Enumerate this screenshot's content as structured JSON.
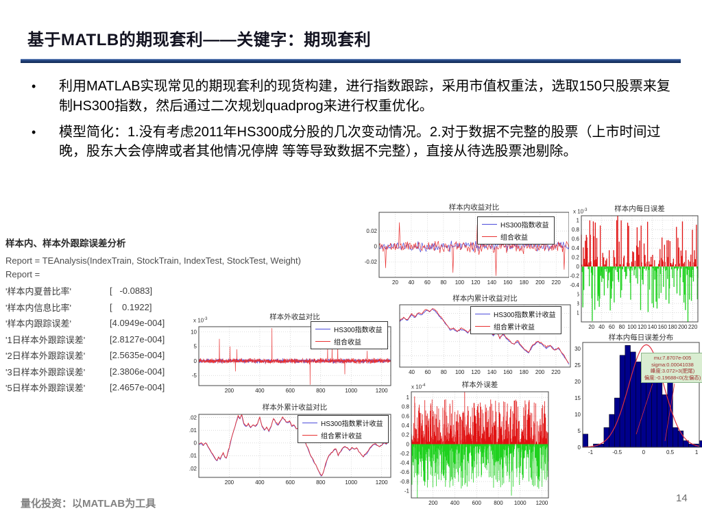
{
  "slide": {
    "title": "基于MATLB的期现套利——关键字：期现套利",
    "bullet_char": "•",
    "bullets": [
      "利用MATLAB实现常见的期现套利的现货构建，进行指数跟踪，采用市值权重法，选取150只股票来复制HS300指数，然后通过二次规划quadprog来进行权重优化。",
      "模型简化：1.没有考虑2011年HS300成分股的几次变动情况。2.对于数据不完整的股票（上市时间过晚，股东大会停牌或者其他情况停牌 等等导致数据不完整），直接从待选股票池剔除。"
    ],
    "footer": {
      "left": "量化投资：以MATLAB为工具",
      "page_number": "14"
    }
  },
  "report": {
    "heading": "样本内、样本外跟踪误差分析",
    "line1": "Report = TEAnalysis(IndexTrain, StockTrain, IndexTest, StockTest, Weight)",
    "line2": "Report =",
    "rows": [
      {
        "name": "'样本内夏普比率'",
        "value": "[   -0.0883]"
      },
      {
        "name": "'样本内信息比率'",
        "value": "[    0.1922]"
      },
      {
        "name": "'样本内跟踪误差'",
        "value": "[4.0949e-004]"
      },
      {
        "name": "'1日样本外跟踪误差'",
        "value": "[2.8127e-004]"
      },
      {
        "name": "'2日样本外跟踪误差'",
        "value": "[2.5635e-004]"
      },
      {
        "name": "'3日样本外跟踪误差'",
        "value": "[2.3806e-004]"
      },
      {
        "name": "'5日样本外跟踪误差'",
        "value": "[2.4657e-004]"
      }
    ]
  },
  "colors": {
    "hs300_line": "#4a4ada",
    "portfolio_line": "#e83030",
    "positive_bar": "#e01212",
    "negative_bar": "#1ed11e",
    "hist_fill": "#00008b",
    "curve": "#e03040",
    "grid": "#c3c3c3",
    "axis": "#444444"
  },
  "chart_data": [
    {
      "id": "in-sample-returns",
      "type": "line-noise",
      "title": "样本内收益对比",
      "xlim": [
        0,
        236
      ],
      "ylim": [
        -0.04,
        0.044
      ],
      "grid": true,
      "x_ticks": [
        20,
        40,
        60,
        80,
        100,
        120,
        140,
        160,
        180,
        200,
        220
      ],
      "y_ticks": [
        0.02,
        0,
        -0.02
      ],
      "legend": [
        "HS300指数收益",
        "组合收益"
      ],
      "n": 235,
      "series": [
        {
          "color_key": "hs300_line",
          "seed": 17,
          "amp": 0.0095
        },
        {
          "color_key": "portfolio_line",
          "seed": 11,
          "amp": 0.0115,
          "spikes": [
            [
              8,
              -0.028
            ],
            [
              25,
              0.031
            ],
            [
              92,
              -0.034
            ],
            [
              122,
              0.028
            ],
            [
              145,
              -0.038
            ],
            [
              150,
              0.027
            ],
            [
              183,
              0.025
            ],
            [
              230,
              -0.03
            ]
          ]
        }
      ]
    },
    {
      "id": "in-sample-daily-error",
      "type": "bar-noise",
      "title": "样本内每日误差",
      "scale_label": {
        "base": "x 10",
        "exp": "-3"
      },
      "xlim": [
        0,
        230
      ],
      "ylim": [
        -1.2,
        1.1
      ],
      "grid": true,
      "x_ticks": [
        20,
        40,
        60,
        80,
        100,
        120,
        140,
        160,
        180,
        200,
        220
      ],
      "y_ticks": [
        1,
        0.8,
        0.6,
        0.4,
        0.2,
        0,
        -0.2,
        -0.4,
        -0.6,
        -0.8,
        -1
      ],
      "n": 235,
      "seed": 31,
      "amp": 1.0,
      "bar_width": 1.3,
      "spikes": [
        [
          72,
          1.12
        ],
        [
          22,
          -1.18
        ],
        [
          57,
          -0.95
        ],
        [
          91,
          0.95
        ],
        [
          93,
          0.88
        ],
        [
          140,
          -0.8
        ],
        [
          188,
          0.86
        ],
        [
          210,
          -1.2
        ]
      ]
    },
    {
      "id": "in-sample-cum-returns",
      "type": "line",
      "title": "样本内累计收益对比",
      "xlim": [
        25,
        238
      ],
      "ylim": [
        -0.033,
        0.011
      ],
      "grid": true,
      "x_ticks": [
        40,
        60,
        80,
        100,
        120,
        140,
        160,
        180,
        200,
        220
      ],
      "y_ticks": [
        0.005,
        -0.005,
        -0.015,
        -0.025
      ],
      "y_tick_labels_hidden": true,
      "legend": [
        "HS300指数累计收益",
        "组合累计收益"
      ],
      "jitter": 0.0012,
      "pair_offset": 0.0009,
      "seeds": [
        3,
        4
      ],
      "points": [
        [
          25,
          -0.001
        ],
        [
          30,
          0.002
        ],
        [
          35,
          0
        ],
        [
          40,
          0.004
        ],
        [
          44,
          0.002
        ],
        [
          48,
          0.005
        ],
        [
          53,
          0.004
        ],
        [
          58,
          0.007
        ],
        [
          62,
          0.006
        ],
        [
          66,
          0.008
        ],
        [
          70,
          0.006
        ],
        [
          74,
          0.003
        ],
        [
          78,
          0.001
        ],
        [
          83,
          -0.003
        ],
        [
          88,
          -0.007
        ],
        [
          92,
          -0.006
        ],
        [
          97,
          -0.008
        ],
        [
          101,
          -0.006
        ],
        [
          105,
          -0.007
        ],
        [
          110,
          -0.009
        ],
        [
          114,
          -0.006
        ],
        [
          118,
          -0.004
        ],
        [
          122,
          -0.002
        ],
        [
          126,
          -0.004
        ],
        [
          130,
          -0.002
        ],
        [
          134,
          -0.005
        ],
        [
          138,
          -0.008
        ],
        [
          142,
          -0.011
        ],
        [
          146,
          -0.008
        ],
        [
          150,
          -0.013
        ],
        [
          154,
          -0.01
        ],
        [
          158,
          -0.013
        ],
        [
          163,
          -0.015
        ],
        [
          168,
          -0.017
        ],
        [
          172,
          -0.015
        ],
        [
          176,
          -0.018
        ],
        [
          181,
          -0.021
        ],
        [
          186,
          -0.023
        ],
        [
          190,
          -0.019
        ],
        [
          194,
          -0.017
        ],
        [
          198,
          -0.015
        ],
        [
          203,
          -0.017
        ],
        [
          208,
          -0.02
        ],
        [
          213,
          -0.018
        ],
        [
          218,
          -0.021
        ],
        [
          223,
          -0.02
        ],
        [
          228,
          -0.024
        ],
        [
          232,
          -0.027
        ],
        [
          236,
          -0.031
        ]
      ]
    },
    {
      "id": "out-sample-returns",
      "type": "line-noise",
      "title": "样本外收益对比",
      "scale_label": {
        "base": "x 10",
        "exp": "-3"
      },
      "xlim": [
        0,
        1260
      ],
      "ylim": [
        -8.5,
        11.8
      ],
      "grid": true,
      "x_ticks": [
        200,
        400,
        600,
        800,
        1000,
        1200
      ],
      "y_ticks": [
        10,
        5,
        0,
        -5
      ],
      "legend": [
        "HS300指数收益",
        "组合收益"
      ],
      "n": 1250,
      "series": [
        {
          "color_key": "hs300_line",
          "seed": 29,
          "amp": 1.0
        },
        {
          "color_key": "portfolio_line",
          "seed": 23,
          "amp": 1.25,
          "spikes": [
            [
              135,
              7.6
            ],
            [
              205,
              5
            ],
            [
              240,
              -3.6
            ],
            [
              250,
              4
            ],
            [
              480,
              11.3
            ],
            [
              730,
              -8.2
            ],
            [
              845,
              4.8
            ],
            [
              875,
              5.2
            ],
            [
              912,
              5.4
            ],
            [
              958,
              -4.6
            ],
            [
              1105,
              3.5
            ]
          ]
        }
      ]
    },
    {
      "id": "out-sample-cum-returns",
      "type": "line",
      "title": "样本外累计收益对比",
      "xlim": [
        0,
        1260
      ],
      "ylim": [
        -0.027,
        0.0225
      ],
      "grid": true,
      "x_ticks": [
        200,
        400,
        600,
        800,
        1000,
        1200
      ],
      "y_ticks": [
        0.02,
        0.01,
        0,
        -0.01,
        -0.02
      ],
      "legend": [
        "HS300指数累计收益",
        "组合累计收益"
      ],
      "jitter": 0.0012,
      "pair_offset": 0.0006,
      "seeds": [
        7,
        8
      ],
      "points": [
        [
          0,
          -0.001
        ],
        [
          15,
          0
        ],
        [
          30,
          -0.002
        ],
        [
          45,
          0
        ],
        [
          60,
          -0.003
        ],
        [
          75,
          -0.006
        ],
        [
          90,
          -0.009
        ],
        [
          105,
          -0.012
        ],
        [
          120,
          -0.014
        ],
        [
          130,
          -0.011
        ],
        [
          140,
          -0.013
        ],
        [
          150,
          -0.01
        ],
        [
          160,
          -0.008
        ],
        [
          170,
          -0.011
        ],
        [
          180,
          -0.012
        ],
        [
          190,
          -0.008
        ],
        [
          200,
          -0.004
        ],
        [
          215,
          0.004
        ],
        [
          230,
          0.01
        ],
        [
          245,
          0.016
        ],
        [
          258,
          0.021
        ],
        [
          270,
          0.019
        ],
        [
          282,
          0.022
        ],
        [
          295,
          0.015
        ],
        [
          310,
          0.013
        ],
        [
          325,
          0.015
        ],
        [
          340,
          0.012
        ],
        [
          355,
          0.014
        ],
        [
          370,
          0.013
        ],
        [
          385,
          0.015
        ],
        [
          400,
          0.02
        ],
        [
          415,
          0.013
        ],
        [
          430,
          0.01
        ],
        [
          445,
          0.012
        ],
        [
          460,
          0.009
        ],
        [
          475,
          0.013
        ],
        [
          490,
          0.019
        ],
        [
          505,
          0.016
        ],
        [
          520,
          0.014
        ],
        [
          535,
          0.017
        ],
        [
          550,
          0.02
        ],
        [
          565,
          0.018
        ],
        [
          580,
          0.016
        ],
        [
          595,
          0.017
        ],
        [
          610,
          0.013
        ],
        [
          625,
          0.014
        ],
        [
          640,
          0.011
        ],
        [
          655,
          0.012
        ],
        [
          670,
          0.006
        ],
        [
          685,
          0.003
        ],
        [
          700,
          0
        ],
        [
          715,
          -0.004
        ],
        [
          730,
          -0.009
        ],
        [
          745,
          -0.012
        ],
        [
          760,
          -0.016
        ],
        [
          775,
          -0.019
        ],
        [
          790,
          -0.023
        ],
        [
          805,
          -0.026
        ],
        [
          815,
          -0.024
        ],
        [
          825,
          -0.02
        ],
        [
          840,
          -0.014
        ],
        [
          855,
          -0.01
        ],
        [
          870,
          -0.008
        ],
        [
          885,
          -0.006
        ],
        [
          900,
          -0.005
        ],
        [
          915,
          -0.01
        ],
        [
          930,
          -0.007
        ],
        [
          945,
          -0.004
        ],
        [
          960,
          -0.003
        ],
        [
          975,
          -0.004
        ],
        [
          990,
          -0.006
        ],
        [
          1005,
          -0.004
        ],
        [
          1020,
          -0.005
        ],
        [
          1035,
          -0.004
        ],
        [
          1050,
          -0.007
        ],
        [
          1065,
          -0.009
        ],
        [
          1080,
          -0.011
        ],
        [
          1095,
          -0.009
        ],
        [
          1110,
          -0.007
        ],
        [
          1125,
          -0.004
        ],
        [
          1140,
          -0.002
        ],
        [
          1155,
          -0.001
        ],
        [
          1170,
          -0.002
        ],
        [
          1185,
          -0.003
        ],
        [
          1200,
          -0.002
        ],
        [
          1215,
          0
        ],
        [
          1230,
          -0.001
        ],
        [
          1245,
          0.001
        ]
      ]
    },
    {
      "id": "out-sample-error",
      "type": "bar-noise",
      "title": "样本外误差",
      "scale_label": {
        "base": "x 10",
        "exp": "-4"
      },
      "xlim": [
        0,
        1260
      ],
      "ylim": [
        -1.15,
        1.12
      ],
      "grid": true,
      "x_ticks": [
        200,
        400,
        600,
        800,
        1000,
        1200
      ],
      "y_ticks": [
        1,
        0.8,
        0.6,
        0.4,
        0.2,
        0,
        -0.2,
        -0.4,
        -0.6,
        -0.8,
        -1
      ],
      "n": 1250,
      "seed": 41,
      "amp": 0.92,
      "bar_width": 0.8,
      "spikes": [
        [
          30,
          1.02
        ],
        [
          55,
          -1.15
        ],
        [
          290,
          0.78
        ],
        [
          490,
          1.12
        ],
        [
          640,
          0.8
        ],
        [
          705,
          0.72
        ],
        [
          860,
          0.9
        ],
        [
          920,
          -1.1
        ],
        [
          960,
          0.95
        ],
        [
          1090,
          0.62
        ]
      ]
    },
    {
      "id": "in-sample-error-distribution",
      "type": "histogram",
      "title": "样本内每日误差分布",
      "xlim": [
        -1.15,
        1.05
      ],
      "ylim": [
        0,
        31.9
      ],
      "grid": false,
      "x_ticks": [
        -1,
        -0.5,
        0,
        0.5,
        1
      ],
      "y_ticks": [
        0,
        5,
        10,
        15,
        20,
        25,
        30
      ],
      "bar_half_width": 0.05,
      "bin_centers": [
        -1.1,
        -1.0,
        -0.9,
        -0.8,
        -0.7,
        -0.6,
        -0.5,
        -0.4,
        -0.3,
        -0.2,
        -0.1,
        0,
        0.1,
        0.2,
        0.3,
        0.4,
        0.5,
        0.6,
        0.7,
        0.8,
        0.9,
        1.0,
        1.1
      ],
      "values": [
        4,
        0,
        1,
        1,
        6,
        10,
        15,
        28,
        31,
        29,
        26,
        26,
        27,
        26,
        22,
        16,
        22,
        6,
        5,
        2,
        1,
        1,
        2
      ],
      "curve": {
        "mu": 0.05,
        "sigma": 0.33,
        "peak": 31.2
      },
      "annotation": [
        "mu:7.8707e-005",
        "sigma:0.00041038",
        "峰度:3.072>3(肥尾)",
        "偏度:-0.19688<0(左偏态)"
      ]
    }
  ]
}
